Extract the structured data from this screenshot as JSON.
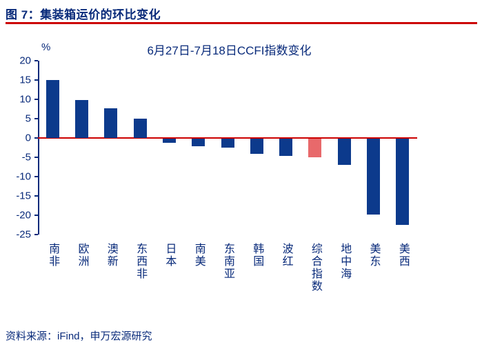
{
  "colors": {
    "background": "#ffffff",
    "text_navy": "#082a7a",
    "accent_red": "#cc0000",
    "bar_color": "#0c3a8c",
    "highlight_color": "#e8696b"
  },
  "figure": {
    "title": "图 7：集装箱运价的环比变化",
    "source": "资料来源：iFind，申万宏源研究"
  },
  "chart_data": {
    "type": "bar",
    "title": "6月27日-7月18日CCFI指数变化",
    "unit_label": "%",
    "categories": [
      "南非",
      "欧洲",
      "澳新",
      "东西非",
      "日本",
      "南美",
      "东南亚",
      "韩国",
      "波红",
      "综合指数",
      "地中海",
      "美东",
      "美西"
    ],
    "values": [
      15.0,
      9.8,
      7.6,
      5.0,
      -1.0,
      -2.0,
      -2.4,
      -3.9,
      -4.4,
      -4.9,
      -6.8,
      -19.6,
      -22.4
    ],
    "highlight_index": 9,
    "highlight_category": "综合指数",
    "ylim": [
      -25,
      20
    ],
    "ytick_step": 5,
    "grid": false,
    "legend_position": "none"
  }
}
